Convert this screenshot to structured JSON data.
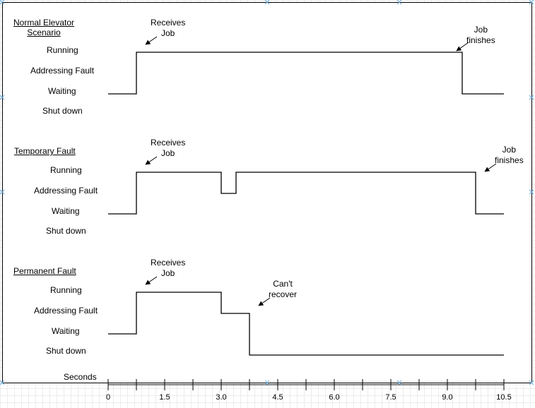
{
  "panels": [
    {
      "title": "Normal Elevator\nScenario",
      "states": [
        "Running",
        "Addressing Fault",
        "Waiting",
        "Shut down"
      ],
      "start_annotation": "Receives\nJob",
      "end_annotation": "Job\nfinishes"
    },
    {
      "title": "Temporary Fault",
      "states": [
        "Running",
        "Addressing Fault",
        "Waiting",
        "Shut down"
      ],
      "start_annotation": "Receives\nJob",
      "end_annotation": "Job\nfinishes"
    },
    {
      "title": "Permanent Fault",
      "states": [
        "Running",
        "Addressing Fault",
        "Waiting",
        "Shut down"
      ],
      "start_annotation": "Receives\nJob",
      "end_annotation": "Can't\nrecover"
    }
  ],
  "axis": {
    "label": "Seconds",
    "tick_labels": [
      "0",
      "1.5",
      "3.0",
      "4.5",
      "6.0",
      "7.5",
      "9.0",
      "10.5"
    ]
  },
  "chart_data": {
    "type": "line",
    "xlabel": "Seconds",
    "xlim": [
      0,
      10.5
    ],
    "y_categories": [
      "Running",
      "Addressing Fault",
      "Waiting",
      "Shut down"
    ],
    "series": [
      {
        "name": "Normal Elevator Scenario",
        "x": [
          0,
          0.75,
          0.75,
          9.4,
          9.4,
          10.5
        ],
        "y": [
          "Waiting",
          "Waiting",
          "Running",
          "Running",
          "Waiting",
          "Waiting"
        ]
      },
      {
        "name": "Temporary Fault",
        "x": [
          0,
          0.75,
          0.75,
          3.0,
          3.0,
          3.4,
          3.4,
          9.75,
          9.75,
          10.5
        ],
        "y": [
          "Waiting",
          "Waiting",
          "Running",
          "Running",
          "Addressing Fault",
          "Addressing Fault",
          "Running",
          "Running",
          "Waiting",
          "Waiting"
        ]
      },
      {
        "name": "Permanent Fault",
        "x": [
          0,
          0.75,
          0.75,
          3.0,
          3.0,
          3.75,
          3.75,
          10.5
        ],
        "y": [
          "Waiting",
          "Waiting",
          "Running",
          "Running",
          "Addressing Fault",
          "Addressing Fault",
          "Shut down",
          "Shut down"
        ]
      }
    ]
  }
}
